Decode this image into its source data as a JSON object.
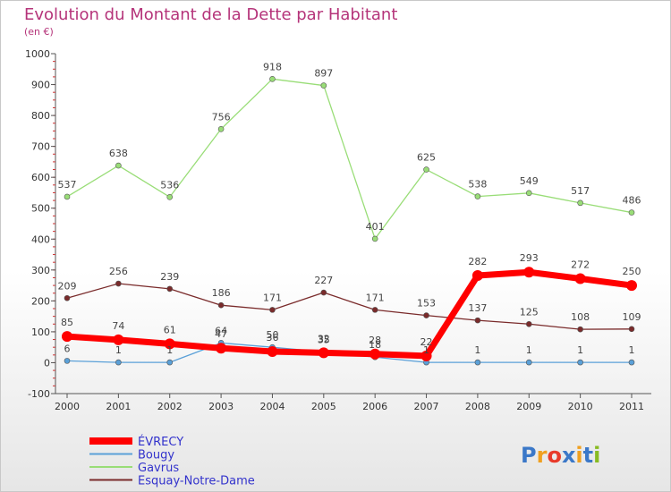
{
  "chart_data": {
    "type": "line",
    "title": "Evolution du Montant de la Dette par Habitant",
    "subtitle": "(en €)",
    "x": [
      "2000",
      "2001",
      "2002",
      "2003",
      "2004",
      "2005",
      "2006",
      "2007",
      "2008",
      "2009",
      "2010",
      "2011"
    ],
    "yticks": [
      "-100",
      "0",
      "100",
      "200",
      "300",
      "400",
      "500",
      "600",
      "700",
      "800",
      "900",
      "1000"
    ],
    "ylim": [
      -100,
      1000
    ],
    "grid": false,
    "legend_position": "bottom-left",
    "series": [
      {
        "name": "ÉVRECY",
        "color": "#ff0000",
        "values": [
          85,
          74,
          61,
          47,
          36,
          32,
          28,
          22,
          282,
          293,
          272,
          250
        ]
      },
      {
        "name": "Bougy",
        "color": "#5aa0d8",
        "values": [
          6,
          1,
          1,
          64,
          50,
          35,
          18,
          1,
          1,
          1,
          1,
          1
        ]
      },
      {
        "name": "Gavrus",
        "color": "#99dd77",
        "values": [
          537,
          638,
          536,
          756,
          918,
          897,
          401,
          625,
          538,
          549,
          517,
          486
        ]
      },
      {
        "name": "Esquay-Notre-Dame",
        "color": "#7a2b2b",
        "values": [
          209,
          256,
          239,
          186,
          171,
          227,
          171,
          153,
          137,
          125,
          108,
          109
        ]
      }
    ]
  },
  "logo": {
    "text": "Proxiti",
    "colors": [
      "#3b78c8",
      "#f0a020",
      "#e83a2a",
      "#3b78c8",
      "#f0a020",
      "#3b78c8",
      "#88bb22"
    ]
  }
}
